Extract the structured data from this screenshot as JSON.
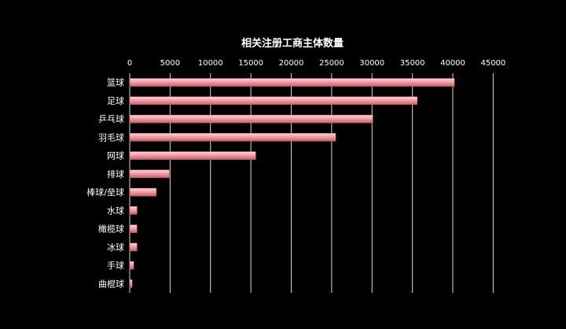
{
  "chart_data": {
    "type": "bar",
    "orientation": "horizontal",
    "title": "相关注册工商主体数量",
    "xlabel": "",
    "ylabel": "",
    "xlim": [
      0,
      45000
    ],
    "x_ticks": [
      0,
      5000,
      10000,
      15000,
      20000,
      25000,
      30000,
      35000,
      40000,
      45000
    ],
    "x_axis_position": "top",
    "grid": true,
    "legend": "none",
    "categories": [
      "篮球",
      "足球",
      "乒乓球",
      "羽毛球",
      "网球",
      "排球",
      "棒球/垒球",
      "水球",
      "橄榄球",
      "冰球",
      "手球",
      "曲棍球"
    ],
    "values": [
      40200,
      35600,
      30100,
      25500,
      15600,
      4900,
      3300,
      900,
      900,
      900,
      500,
      300
    ],
    "colors": {
      "background": "#000000",
      "bar": "#f0a0a8",
      "bar_highlight": "#ffd5da",
      "bar_shadow": "#c8606c",
      "grid": "#d9d9d9",
      "text": "#ffffff"
    }
  }
}
